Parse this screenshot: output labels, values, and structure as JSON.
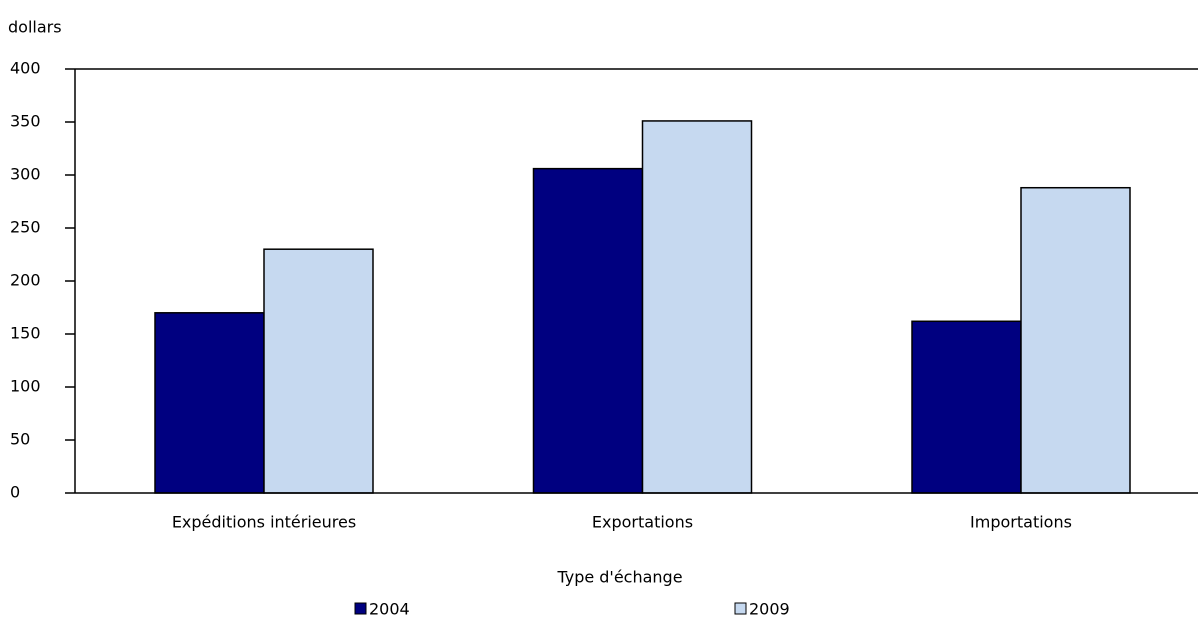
{
  "chart_data": {
    "type": "bar",
    "y_axis_label": "dollars",
    "x_axis_label": "Type d'échange",
    "categories": [
      "Expéditions intérieures",
      "Exportations",
      "Importations"
    ],
    "series": [
      {
        "name": "2004",
        "color": "#000080",
        "values": [
          170,
          306,
          162
        ]
      },
      {
        "name": "2009",
        "color": "#c6d9f0",
        "values": [
          230,
          351,
          288
        ]
      }
    ],
    "ylim": [
      0,
      400
    ],
    "yticks": [
      0,
      50,
      100,
      150,
      200,
      250,
      300,
      350,
      400
    ],
    "legend": "bottom"
  }
}
